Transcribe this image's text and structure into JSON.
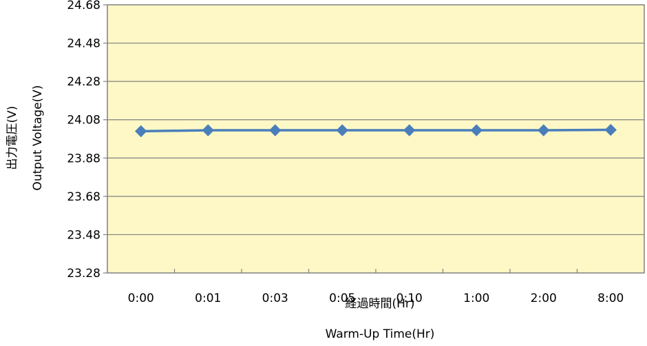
{
  "chart_data": {
    "type": "line",
    "categories": [
      "0:00",
      "0:01",
      "0:03",
      "0:05",
      "0:10",
      "1:00",
      "2:00",
      "8:00"
    ],
    "series": [
      {
        "values": [
          24.02,
          24.025,
          24.025,
          24.025,
          24.025,
          24.025,
          24.025,
          24.027
        ]
      }
    ],
    "y_ticks": [
      "24.68",
      "24.48",
      "24.28",
      "24.08",
      "23.88",
      "23.68",
      "23.48",
      "23.28"
    ],
    "ylim": [
      23.28,
      24.68
    ],
    "xlabel_ja": "経過時間(Hr)",
    "xlabel_en": "Warm-Up Time(Hr)",
    "ylabel_ja": "出力電圧(V)",
    "ylabel_en": "Output  Voltage(V)",
    "grid": true,
    "colors": {
      "plot_bg": "#fdf8c6",
      "line": "#4a7ebb",
      "grid": "#808080"
    }
  }
}
